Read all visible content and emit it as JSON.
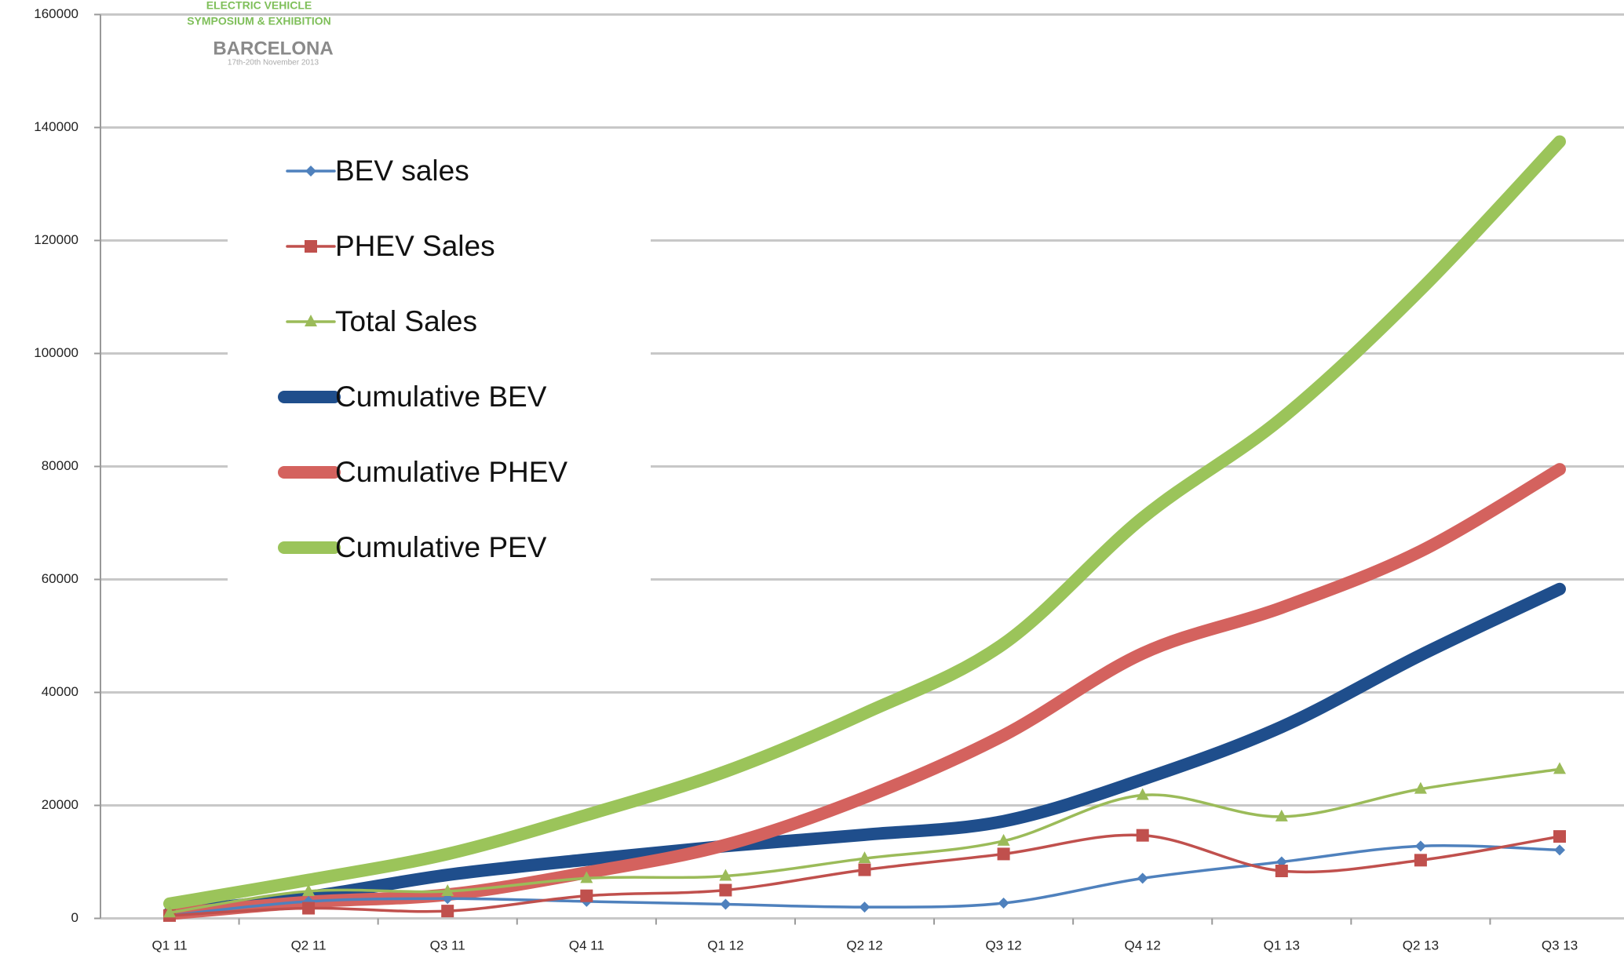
{
  "chart_data": {
    "type": "line",
    "logo": {
      "line1": "ELECTRIC VEHICLE",
      "line2": "SYMPOSIUM & EXHIBITION",
      "city": "BARCELONA",
      "dates": "17th-20th November 2013"
    },
    "categories": [
      "Q1 11",
      "Q2 11",
      "Q3 11",
      "Q4 11",
      "Q1 12",
      "Q2 12",
      "Q3 12",
      "Q4 12",
      "Q1 13",
      "Q2 13",
      "Q3 13"
    ],
    "series": [
      {
        "name": "BEV sales",
        "color": "#4f81bd",
        "marker": "diamond",
        "values": [
          500,
          3000,
          3500,
          3000,
          2500,
          2000,
          2700,
          7100,
          10000,
          12800,
          12100
        ]
      },
      {
        "name": "PHEV Sales",
        "color": "#c0504d",
        "marker": "square",
        "values": [
          500,
          1800,
          1300,
          4000,
          5000,
          8600,
          11400,
          14700,
          8400,
          10300,
          14500
        ]
      },
      {
        "name": "Total Sales",
        "color": "#9bbb59",
        "marker": "triangle",
        "values": [
          1000,
          4800,
          4800,
          7100,
          7500,
          10600,
          13700,
          21800,
          18000,
          22900,
          26400
        ]
      },
      {
        "name": "Cumulative BEV",
        "color": "#1f4e8c",
        "marker": "none",
        "values": [
          1000,
          3800,
          7700,
          10400,
          12800,
          14800,
          17200,
          24600,
          33900,
          46600,
          58300
        ]
      },
      {
        "name": "Cumulative PHEV",
        "color": "#d4625e",
        "marker": "none",
        "values": [
          800,
          2900,
          4200,
          8100,
          13000,
          21400,
          32400,
          46900,
          55000,
          65000,
          79500
        ]
      },
      {
        "name": "Cumulative PEV",
        "color": "#9bc45a",
        "marker": "none",
        "values": [
          2600,
          6800,
          11400,
          18300,
          26000,
          36300,
          48600,
          70900,
          88500,
          111300,
          137500
        ]
      }
    ],
    "ylim": [
      0,
      160000
    ],
    "yticks": [
      0,
      20000,
      40000,
      60000,
      80000,
      100000,
      120000,
      140000,
      160000
    ],
    "grid": true,
    "legend": "left"
  }
}
